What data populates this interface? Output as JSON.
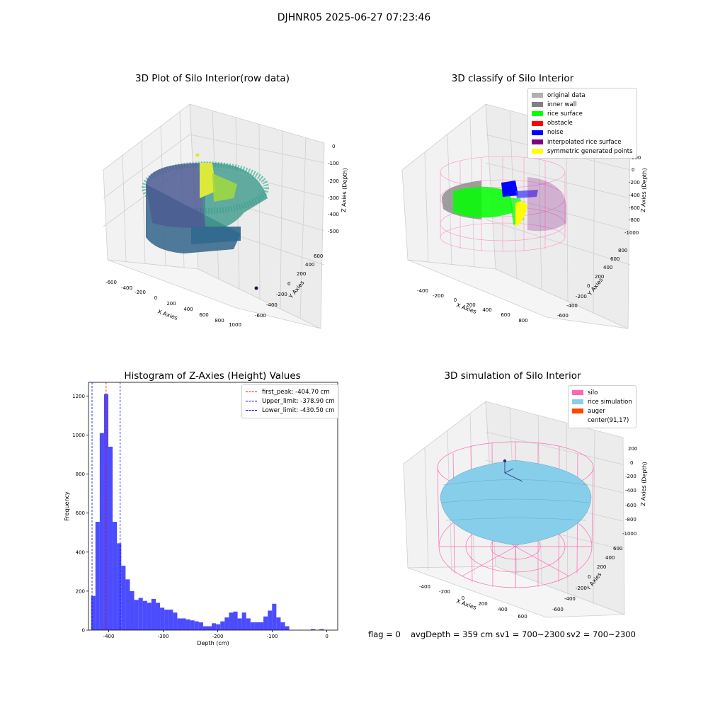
{
  "figure": {
    "suptitle": "DJHNR05 2025-06-27 07:23:46",
    "footer": {
      "flag": "flag = 0",
      "avg_depth": "avgDepth = 359 cm",
      "sv1": "sv1 = 700~2300",
      "sv2": "sv2 = 700~2300"
    }
  },
  "panels": {
    "raw": {
      "title": "3D Plot of Silo Interior(row data)",
      "xlabel": "X Axies",
      "ylabel": "Y Axies",
      "zlabel": "Z Axies (Depth)",
      "xticks": [
        "-600",
        "-400",
        "-200",
        "0",
        "200",
        "400",
        "600",
        "800",
        "1000"
      ],
      "yticks": [
        "-600",
        "-400",
        "-200",
        "0",
        "200",
        "400",
        "600"
      ],
      "zticks": [
        "0",
        "-100",
        "-200",
        "-300",
        "-400",
        "-500"
      ]
    },
    "classify": {
      "title": "3D classify of Silo Interior",
      "xlabel": "X Axies",
      "ylabel": "Y Axies",
      "zlabel": "Z Axies (Depth)",
      "xticks": [
        "-400",
        "-200",
        "0",
        "200",
        "400",
        "600",
        "800"
      ],
      "yticks": [
        "-600",
        "-400",
        "-200",
        "0",
        "200",
        "400",
        "600",
        "800"
      ],
      "zticks": [
        "200",
        "0",
        "-200",
        "-400",
        "-600",
        "-800",
        "-1000"
      ],
      "legend": [
        {
          "label": "original data",
          "color": "#b0b0b0"
        },
        {
          "label": "inner wall",
          "color": "#808080"
        },
        {
          "label": "rice surface",
          "color": "#00ff00"
        },
        {
          "label": "obstacle",
          "color": "#ff0000"
        },
        {
          "label": "noise",
          "color": "#0000ff"
        },
        {
          "label": "interpolated rice surface",
          "color": "#800080"
        },
        {
          "label": "symmetric generated points",
          "color": "#ffff00"
        }
      ]
    },
    "simulation": {
      "title": "3D simulation of Silo Interior",
      "xlabel": "X Axies",
      "ylabel": "Y Axies",
      "zlabel": "Z Axies (Depth)",
      "xticks": [
        "-400",
        "-200",
        "0",
        "200",
        "400",
        "600"
      ],
      "yticks": [
        "-600",
        "-400",
        "-200",
        "0",
        "200",
        "400",
        "600"
      ],
      "zticks": [
        "200",
        "0",
        "-200",
        "-400",
        "-600",
        "-800",
        "-1000"
      ],
      "legend": [
        {
          "label": "silo",
          "color": "#ff69b4"
        },
        {
          "label": "rice simulation",
          "color": "#87ceeb"
        },
        {
          "label": "auger",
          "color": "#ff4500"
        },
        {
          "label": "center(91,17)",
          "color": ""
        }
      ]
    }
  },
  "chart_data": {
    "type": "bar",
    "title": "Histogram of Z-Axies (Height) Values",
    "xlabel": "Depth (cm)",
    "ylabel": "Frequency",
    "xlim": [
      -437,
      20
    ],
    "ylim": [
      0,
      1270
    ],
    "xticks": [
      -400,
      -300,
      -200,
      -100,
      0
    ],
    "yticks": [
      0,
      200,
      400,
      600,
      800,
      1000,
      1200
    ],
    "bar_color": "#0000ff",
    "bin_width": 7.9,
    "bins_start": [
      -432.2,
      -424.3,
      -416.4,
      -408.5,
      -400.6,
      -392.7,
      -384.8,
      -376.9,
      -369.0,
      -361.1,
      -353.2,
      -345.3,
      -337.4,
      -329.5,
      -321.6,
      -313.7,
      -305.8,
      -297.9,
      -290.0,
      -282.1,
      -274.2,
      -266.3,
      -258.4,
      -250.5,
      -242.6,
      -234.7,
      -226.8,
      -218.9,
      -211.0,
      -203.1,
      -195.2,
      -187.3,
      -179.4,
      -171.5,
      -163.6,
      -155.7,
      -147.8,
      -139.9,
      -132.0,
      -124.1,
      -116.2,
      -108.3,
      -100.4,
      -92.5,
      -84.6,
      -76.7,
      -68.8,
      -60.9,
      -53.0,
      -45.1,
      -37.2,
      -29.3,
      -21.4,
      -13.5,
      -5.6
    ],
    "values": [
      175,
      555,
      1010,
      1210,
      940,
      555,
      445,
      330,
      260,
      200,
      155,
      165,
      150,
      140,
      160,
      140,
      115,
      105,
      105,
      90,
      60,
      60,
      55,
      50,
      45,
      40,
      20,
      20,
      35,
      30,
      45,
      65,
      90,
      95,
      60,
      90,
      60,
      40,
      40,
      40,
      70,
      100,
      135,
      65,
      40,
      20,
      0,
      0,
      0,
      0,
      0,
      5,
      0,
      5,
      0
    ],
    "vlines": [
      {
        "label": "first_peak: -404.70 cm",
        "x": -404.7,
        "color": "#ff0000"
      },
      {
        "label": "Upper_limit: -378.90 cm",
        "x": -378.9,
        "color": "#0000ff"
      },
      {
        "label": "Lower_limit: -430.50 cm",
        "x": -430.5,
        "color": "#0000ff"
      }
    ],
    "legend_position": "top-right"
  }
}
